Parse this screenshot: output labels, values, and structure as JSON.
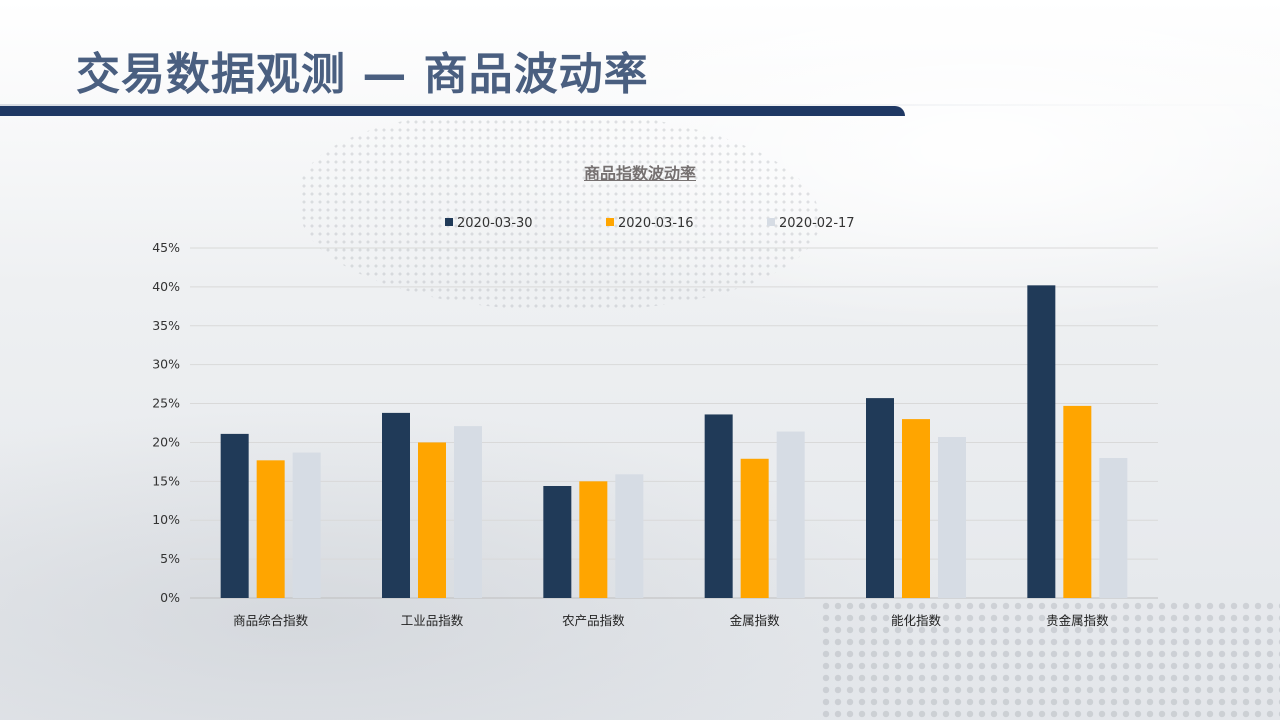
{
  "page": {
    "title": "交易数据观测 — 商品波动率"
  },
  "colors": {
    "title": "#4a5f80",
    "accent_bar": "#1f3864"
  },
  "chart_data": {
    "type": "bar",
    "title": "商品指数波动率",
    "xlabel": "",
    "ylabel": "",
    "ylim": [
      0,
      45
    ],
    "ytick_step": 5,
    "ytick_suffix": "%",
    "grid": true,
    "legend_position": "top",
    "categories": [
      "商品综合指数",
      "工业品指数",
      "农产品指数",
      "金属指数",
      "能化指数",
      "贵金属指数"
    ],
    "series": [
      {
        "name": "2020-03-30",
        "color": "#203a58",
        "values": [
          21.1,
          23.8,
          14.4,
          23.6,
          25.7,
          40.2
        ]
      },
      {
        "name": "2020-03-16",
        "color": "#ffa500",
        "values": [
          17.7,
          20.0,
          15.0,
          17.9,
          23.0,
          24.7
        ]
      },
      {
        "name": "2020-02-17",
        "color": "#d6dce4",
        "values": [
          18.7,
          22.1,
          15.9,
          21.4,
          20.7,
          18.0
        ]
      }
    ]
  }
}
